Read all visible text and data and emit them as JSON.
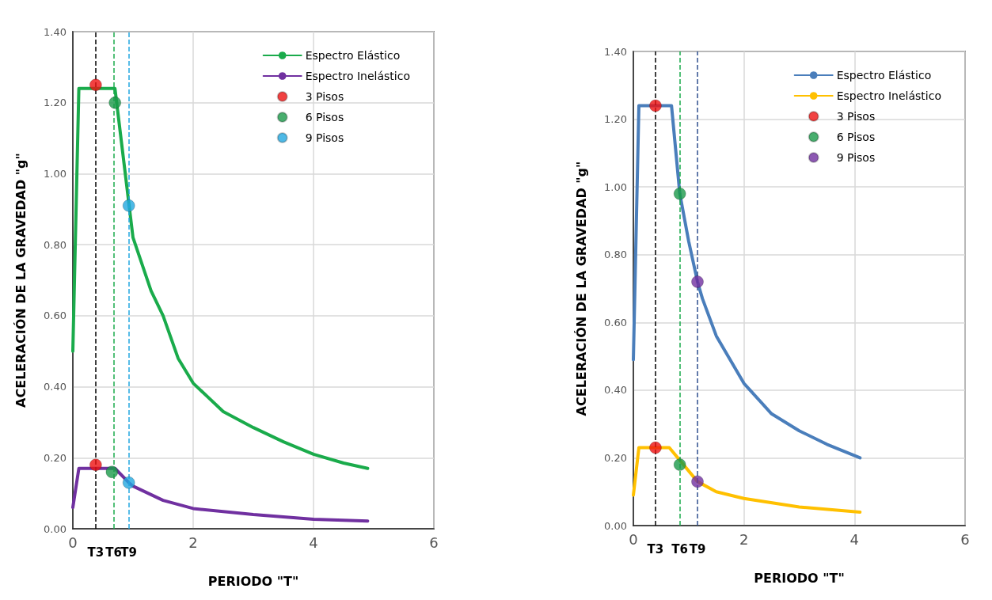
{
  "chart_data": [
    {
      "type": "line",
      "xlabel": "PERIODO \"T\"",
      "ylabel": "ACELERACIÓN DE LA GRAVEDAD \"g\"",
      "xlim": [
        0,
        6
      ],
      "xticks": [
        0,
        2,
        4,
        6
      ],
      "ylim": [
        0,
        1.4
      ],
      "yticks": [
        {
          "value": 0,
          "label": "0.00"
        },
        {
          "value": 0.2,
          "label": "0.20"
        },
        {
          "value": 0.4,
          "label": "0.40"
        },
        {
          "value": 0.6,
          "label": "0.60"
        },
        {
          "value": 0.8,
          "label": "0.80"
        },
        {
          "value": 1,
          "label": "1.00"
        },
        {
          "value": 1.2,
          "label": "1.20"
        },
        {
          "value": 1.4,
          "label": "1.40"
        }
      ],
      "grid": true,
      "legend": "top right",
      "series": [
        {
          "name": "Espectro Elástico",
          "color": "#1aab4b",
          "x": [
            0,
            0.1,
            0.7,
            1.0,
            1.3,
            1.5,
            1.75,
            2,
            2.5,
            3,
            3.5,
            4,
            4.5,
            4.9
          ],
          "values": [
            0.5,
            1.24,
            1.24,
            0.82,
            0.67,
            0.6,
            0.48,
            0.41,
            0.33,
            0.285,
            0.245,
            0.21,
            0.185,
            0.17
          ]
        },
        {
          "name": "Espectro Inelástico",
          "color": "#7030a0",
          "x": [
            0,
            0.1,
            0.7,
            0.93,
            1.0,
            1.5,
            2,
            3,
            4,
            4.9
          ],
          "values": [
            0.06,
            0.17,
            0.17,
            0.13,
            0.12,
            0.08,
            0.057,
            0.04,
            0.027,
            0.022
          ]
        },
        {
          "name": "3 Pisos",
          "type": "scatter",
          "color": "#ee1111",
          "x": [
            0.38,
            0.38
          ],
          "values": [
            1.25,
            0.18
          ]
        },
        {
          "name": "6 Pisos",
          "type": "scatter",
          "color": "#1a9a4a",
          "x": [
            0.7,
            0.65
          ],
          "values": [
            1.2,
            0.16
          ]
        },
        {
          "name": "9 Pisos",
          "type": "scatter",
          "color": "#22a7e0",
          "x": [
            0.93,
            0.93
          ],
          "values": [
            0.91,
            0.13
          ]
        }
      ],
      "ref_lines": [
        {
          "axis": "x",
          "value": 0.38,
          "label": "T3",
          "color": "#000000",
          "line_style": "dashed"
        },
        {
          "axis": "x",
          "value": 0.68,
          "label": "T6",
          "color": "#1aab4b",
          "line_style": "dashed"
        },
        {
          "axis": "x",
          "value": 0.93,
          "label": "T9",
          "color": "#22a7e0",
          "line_style": "dashed"
        }
      ]
    },
    {
      "type": "line",
      "xlabel": "PERIODO \"T\"",
      "ylabel": "ACELERACIÓN DE LA GRAVEDAD \"g\"",
      "xlim": [
        0,
        6
      ],
      "xticks": [
        0,
        2,
        4,
        6
      ],
      "ylim": [
        0,
        1.4
      ],
      "yticks": [
        {
          "value": 0,
          "label": "0.00"
        },
        {
          "value": 0.2,
          "label": "0.20"
        },
        {
          "value": 0.4,
          "label": "0.40"
        },
        {
          "value": 0.6,
          "label": "0.60"
        },
        {
          "value": 0.8,
          "label": "0.80"
        },
        {
          "value": 1,
          "label": "1.00"
        },
        {
          "value": 1.2,
          "label": "1.20"
        },
        {
          "value": 1.4,
          "label": "1.40"
        }
      ],
      "grid": true,
      "legend": "top right",
      "series": [
        {
          "name": "Espectro Elástico",
          "color": "#4a7ebb",
          "x": [
            0,
            0.1,
            0.69,
            0.84,
            1.0,
            1.16,
            1.25,
            1.5,
            2,
            2.5,
            3,
            3.5,
            4.1
          ],
          "values": [
            0.49,
            1.24,
            1.24,
            0.98,
            0.84,
            0.72,
            0.67,
            0.56,
            0.42,
            0.33,
            0.28,
            0.24,
            0.2
          ]
        },
        {
          "name": "Espectro Inelástico",
          "color": "#ffc000",
          "x": [
            0,
            0.1,
            0.65,
            1.16,
            1.5,
            2,
            3,
            4.1
          ],
          "values": [
            0.09,
            0.23,
            0.23,
            0.13,
            0.1,
            0.08,
            0.055,
            0.04
          ]
        },
        {
          "name": "3 Pisos",
          "type": "scatter",
          "color": "#ee1111",
          "x": [
            0.4,
            0.4
          ],
          "values": [
            1.24,
            0.23
          ]
        },
        {
          "name": "6 Pisos",
          "type": "scatter",
          "color": "#1a9a4a",
          "x": [
            0.84,
            0.84
          ],
          "values": [
            0.98,
            0.18
          ]
        },
        {
          "name": "9 Pisos",
          "type": "scatter",
          "color": "#7030a0",
          "x": [
            1.16,
            1.16
          ],
          "values": [
            0.72,
            0.13
          ]
        }
      ],
      "ref_lines": [
        {
          "axis": "x",
          "value": 0.4,
          "label": "T3",
          "color": "#000000",
          "line_style": "dashed"
        },
        {
          "axis": "x",
          "value": 0.84,
          "label": "T6",
          "color": "#1aab4b",
          "line_style": "dashed"
        },
        {
          "axis": "x",
          "value": 1.16,
          "label": "T9",
          "color": "#2f4f8f",
          "line_style": "dashed"
        }
      ]
    }
  ]
}
